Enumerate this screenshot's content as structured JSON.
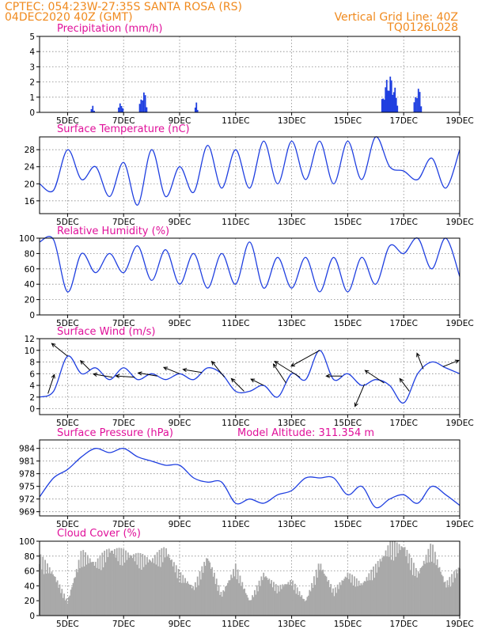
{
  "header": {
    "left_line1": "CPTEC:   054:23W-27:35S   SANTA ROSA (RS)",
    "left_line2": "04DEC2020 40Z (GMT)",
    "right_line1": "Vertical Grid Line: 40Z",
    "right_line2": "TQ0126L028"
  },
  "colors": {
    "header": "#f08a1e",
    "panel_title": "#e0109a",
    "series_line": "#1f3fe0",
    "precip_bar": "#1f3fe0",
    "cloud_bar": "#a9a9a9",
    "wind_arrow": "#000000"
  },
  "chart_data": [
    {
      "type": "bar",
      "title": "Precipitation (mm/h)",
      "x_tick_labels": [
        "5DEC",
        "7DEC",
        "9DEC",
        "11DEC",
        "13DEC",
        "15DEC",
        "17DEC",
        "19DEC"
      ],
      "ylim": [
        0,
        5
      ],
      "y_ticks": [
        0,
        1,
        2,
        3,
        4,
        5
      ],
      "grid": true,
      "events": [
        {
          "day": 5.9,
          "dur": 0.1,
          "peak": 0.6
        },
        {
          "day": 6.9,
          "dur": 0.15,
          "peak": 0.9
        },
        {
          "day": 7.7,
          "dur": 0.25,
          "peak": 1.6
        },
        {
          "day": 9.6,
          "dur": 0.08,
          "peak": 0.9
        },
        {
          "day": 16.5,
          "dur": 0.55,
          "peak": 2.5
        },
        {
          "day": 17.5,
          "dur": 0.25,
          "peak": 1.9
        }
      ]
    },
    {
      "type": "line",
      "title": "Surface Temperature (nC)",
      "x_tick_labels": [
        "5DEC",
        "7DEC",
        "9DEC",
        "11DEC",
        "13DEC",
        "15DEC",
        "17DEC",
        "19DEC"
      ],
      "ylim": [
        13,
        31
      ],
      "y_ticks": [
        16,
        20,
        24,
        28
      ],
      "grid": true,
      "x": [
        4.0,
        4.5,
        5.0,
        5.5,
        6.0,
        6.5,
        7.0,
        7.5,
        8.0,
        8.5,
        9.0,
        9.5,
        10.0,
        10.5,
        11.0,
        11.5,
        12.0,
        12.5,
        13.0,
        13.5,
        14.0,
        14.5,
        15.0,
        15.5,
        16.0,
        16.5,
        17.0,
        17.5,
        18.0,
        18.5,
        19.0
      ],
      "y": [
        20,
        18.5,
        28,
        21,
        24,
        17,
        25,
        15,
        28,
        17,
        24,
        18,
        29,
        19,
        28,
        19,
        30,
        20,
        30,
        21,
        30,
        20,
        30,
        21,
        31,
        24,
        23,
        21,
        26,
        19,
        28
      ]
    },
    {
      "type": "line",
      "title": "Relative Humidity (%)",
      "x_tick_labels": [
        "5DEC",
        "7DEC",
        "9DEC",
        "11DEC",
        "13DEC",
        "15DEC",
        "17DEC",
        "19DEC"
      ],
      "ylim": [
        0,
        100
      ],
      "y_ticks": [
        0,
        20,
        40,
        60,
        80,
        100
      ],
      "grid": true,
      "x": [
        4.0,
        4.5,
        5.0,
        5.5,
        6.0,
        6.5,
        7.0,
        7.5,
        8.0,
        8.5,
        9.0,
        9.5,
        10.0,
        10.5,
        11.0,
        11.5,
        12.0,
        12.5,
        13.0,
        13.5,
        14.0,
        14.5,
        15.0,
        15.5,
        16.0,
        16.5,
        17.0,
        17.5,
        18.0,
        18.5,
        19.0
      ],
      "y": [
        95,
        98,
        30,
        80,
        55,
        80,
        55,
        90,
        45,
        85,
        40,
        80,
        35,
        80,
        40,
        95,
        35,
        75,
        35,
        75,
        30,
        75,
        30,
        75,
        40,
        90,
        80,
        100,
        60,
        100,
        50
      ]
    },
    {
      "type": "line",
      "title": "Surface Wind (m/s)",
      "x_tick_labels": [
        "5DEC",
        "7DEC",
        "9DEC",
        "11DEC",
        "13DEC",
        "15DEC",
        "17DEC",
        "19DEC"
      ],
      "ylim": [
        -1,
        12
      ],
      "y_ticks": [
        0,
        2,
        4,
        6,
        8,
        10,
        12
      ],
      "grid": true,
      "x": [
        4.0,
        4.5,
        5.0,
        5.5,
        6.0,
        6.5,
        7.0,
        7.5,
        8.0,
        8.5,
        9.0,
        9.5,
        10.0,
        10.5,
        11.0,
        11.5,
        12.0,
        12.5,
        13.0,
        13.5,
        14.0,
        14.5,
        15.0,
        15.5,
        16.0,
        16.5,
        17.0,
        17.5,
        18.0,
        18.5,
        19.0
      ],
      "y": [
        2,
        3,
        9,
        6,
        7,
        5,
        7,
        5,
        6,
        5,
        6,
        5,
        7,
        6,
        3,
        3,
        4,
        2,
        6,
        5,
        10,
        5,
        6,
        4,
        5,
        4,
        1,
        6,
        8,
        7,
        6
      ],
      "arrows": [
        {
          "day": 4.3,
          "u": 1.0,
          "v": 3.0
        },
        {
          "day": 5.0,
          "u": -2.5,
          "v": 2.0
        },
        {
          "day": 5.8,
          "u": -1.5,
          "v": 1.5
        },
        {
          "day": 6.6,
          "u": -3.0,
          "v": 0.5
        },
        {
          "day": 7.4,
          "u": -3.0,
          "v": 0.2
        },
        {
          "day": 8.2,
          "u": -3.0,
          "v": 0.5
        },
        {
          "day": 9.0,
          "u": -2.5,
          "v": 1.0
        },
        {
          "day": 9.8,
          "u": -3.0,
          "v": 0.5
        },
        {
          "day": 10.6,
          "u": -2.0,
          "v": 2.5
        },
        {
          "day": 11.3,
          "u": -2.0,
          "v": 2.0
        },
        {
          "day": 12.0,
          "u": -2.0,
          "v": 1.0
        },
        {
          "day": 12.8,
          "u": -2.0,
          "v": 3.0
        },
        {
          "day": 13.3,
          "u": -4.0,
          "v": 2.5
        },
        {
          "day": 14.0,
          "u": -4.5,
          "v": -2.5
        },
        {
          "day": 14.8,
          "u": -2.5,
          "v": 0.0
        },
        {
          "day": 15.6,
          "u": -1.5,
          "v": -3.5
        },
        {
          "day": 16.3,
          "u": -3.0,
          "v": 2.0
        },
        {
          "day": 17.2,
          "u": -1.5,
          "v": 2.0
        },
        {
          "day": 17.7,
          "u": -1.0,
          "v": 2.5
        },
        {
          "day": 18.4,
          "u": 2.5,
          "v": 1.0
        }
      ]
    },
    {
      "type": "line",
      "title": "Surface Pressure (hPa)",
      "annotation": "Model Altitude: 311.354 m",
      "x_tick_labels": [
        "5DEC",
        "7DEC",
        "9DEC",
        "11DEC",
        "13DEC",
        "15DEC",
        "17DEC",
        "19DEC"
      ],
      "ylim": [
        968,
        986
      ],
      "y_ticks": [
        969,
        972,
        975,
        978,
        981,
        984
      ],
      "y_tick_labels": [
        "969",
        "972",
        "975",
        "978",
        "981",
        "984"
      ],
      "grid": true,
      "x": [
        4.0,
        4.5,
        5.0,
        5.5,
        6.0,
        6.5,
        7.0,
        7.5,
        8.0,
        8.5,
        9.0,
        9.5,
        10.0,
        10.5,
        11.0,
        11.5,
        12.0,
        12.5,
        13.0,
        13.5,
        14.0,
        14.5,
        15.0,
        15.5,
        16.0,
        16.5,
        17.0,
        17.5,
        18.0,
        18.5,
        19.0
      ],
      "y": [
        972.5,
        977,
        979,
        982,
        984,
        983,
        984,
        982,
        981,
        980,
        980,
        977,
        976,
        976,
        971,
        972,
        971,
        973,
        974,
        977,
        977,
        977,
        973,
        975,
        970,
        972,
        973,
        971,
        975,
        973,
        970.5
      ]
    },
    {
      "type": "bar",
      "title": "Cloud Cover (%)",
      "x_tick_labels": [
        "5DEC",
        "7DEC",
        "9DEC",
        "11DEC",
        "13DEC",
        "15DEC",
        "17DEC",
        "19DEC"
      ],
      "ylim": [
        0,
        100
      ],
      "y_ticks": [
        0,
        20,
        40,
        60,
        80,
        100
      ],
      "grid": true,
      "x": [
        4.0,
        4.5,
        5.0,
        5.5,
        6.0,
        6.5,
        7.0,
        7.5,
        8.0,
        8.5,
        9.0,
        9.5,
        10.0,
        10.5,
        11.0,
        11.5,
        12.0,
        12.5,
        13.0,
        13.5,
        14.0,
        14.5,
        15.0,
        15.5,
        16.0,
        16.5,
        17.0,
        17.5,
        18.0,
        18.5,
        19.0
      ],
      "y": [
        85,
        60,
        20,
        90,
        75,
        95,
        90,
        85,
        80,
        95,
        60,
        40,
        85,
        30,
        70,
        20,
        60,
        40,
        50,
        20,
        75,
        35,
        60,
        45,
        70,
        100,
        100,
        60,
        100,
        45,
        70
      ]
    }
  ]
}
